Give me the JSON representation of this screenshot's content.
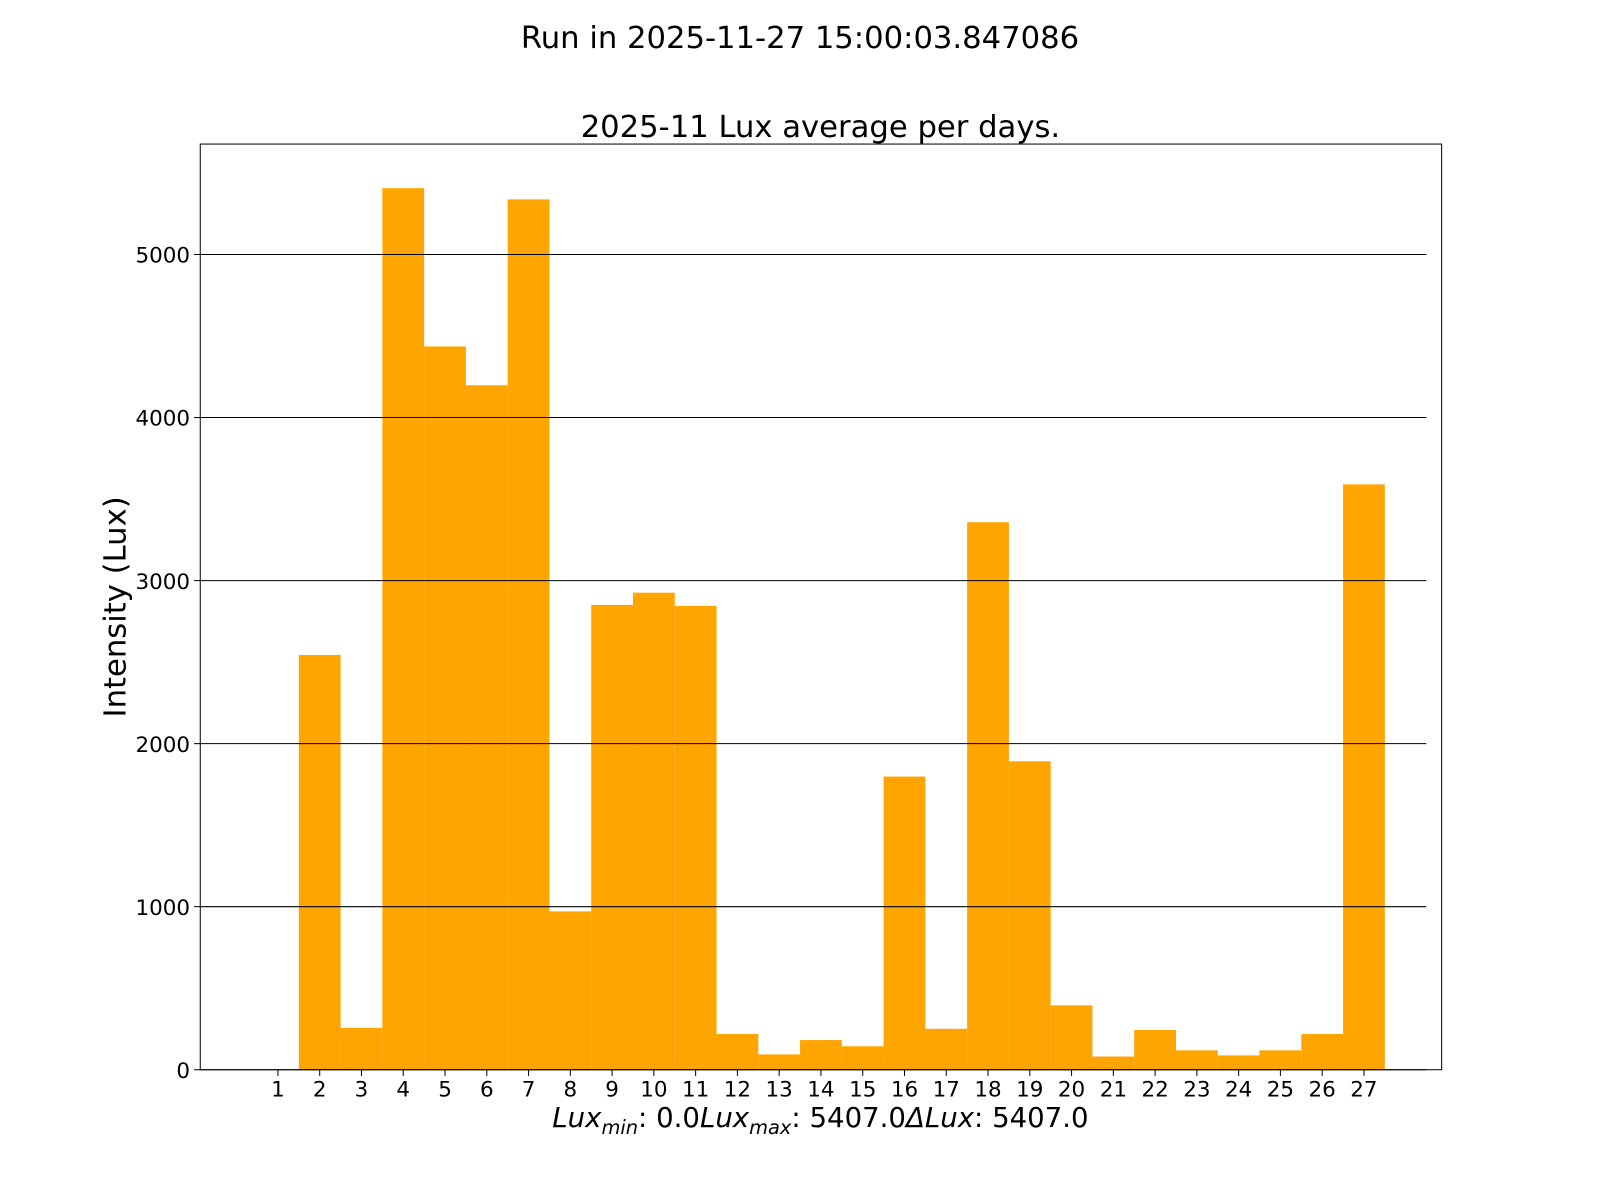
{
  "chart_data": {
    "type": "bar",
    "suptitle": "Run in 2025-11-27 15:00:03.847086",
    "title": "2025-11 Lux average per days.",
    "y_label": "Intensity (Lux)",
    "x": [
      1,
      2,
      3,
      4,
      5,
      6,
      7,
      8,
      9,
      10,
      11,
      12,
      13,
      14,
      15,
      16,
      17,
      18,
      19,
      20,
      21,
      22,
      23,
      24,
      25,
      26,
      27
    ],
    "values": [
      0,
      2544,
      257,
      5407,
      4436,
      4198,
      5338,
      971,
      2851,
      2926,
      2845,
      219,
      94,
      182,
      144,
      1798,
      251,
      3358,
      1892,
      395,
      81,
      244,
      119,
      88,
      119,
      219,
      3590
    ],
    "color": "#ffa500",
    "bar_width": 1,
    "xlim": [
      -0.86,
      28.86
    ],
    "ylim": [
      0,
      5677.35
    ],
    "yticks": [
      0,
      1000,
      2000,
      3000,
      4000,
      5000
    ],
    "grid": true,
    "stats": [
      {
        "symbol": "Lux",
        "subscript": "min",
        "value": ": 0.0"
      },
      {
        "symbol": "Lux",
        "subscript": "max",
        "value": ": 5407.0"
      },
      {
        "symbol": "ΔLux",
        "value": ": 5407.0"
      }
    ]
  }
}
